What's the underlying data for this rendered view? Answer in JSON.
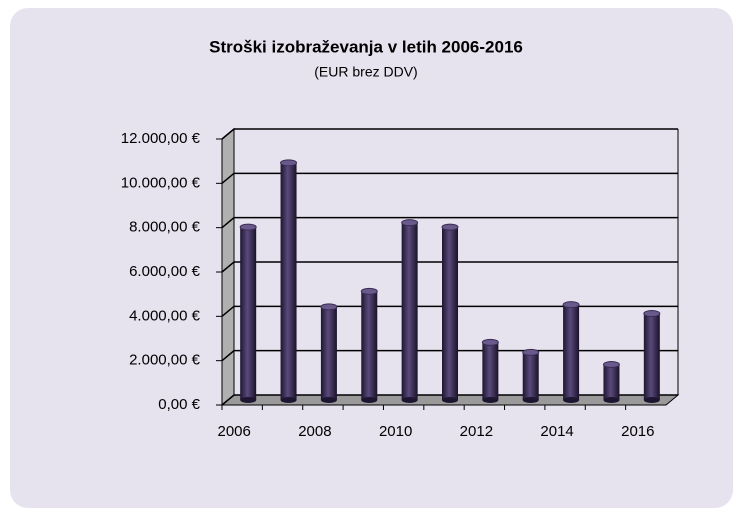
{
  "chart_data": {
    "type": "bar3d",
    "title": "Stroški izobraževanja v letih 2006-2016",
    "subtitle": "(EUR brez DDV)",
    "categories": [
      "2006",
      null,
      "2008",
      null,
      "2010",
      null,
      "2012",
      null,
      "2014",
      null,
      "2016"
    ],
    "values": [
      7800,
      10700,
      4200,
      4900,
      8000,
      7800,
      2600,
      2150,
      4300,
      1600,
      3900
    ],
    "color": "#3a2d55",
    "ylim": [
      0,
      12000
    ],
    "yticks": [
      {
        "value": 0,
        "label": "0,00 €"
      },
      {
        "value": 2000,
        "label": "2.000,00 €"
      },
      {
        "value": 4000,
        "label": "4.000,00 €"
      },
      {
        "value": 6000,
        "label": "6.000,00 €"
      },
      {
        "value": 8000,
        "label": "8.000,00 €"
      },
      {
        "value": 10000,
        "label": "10.000,00 €"
      },
      {
        "value": 12000,
        "label": "12.000,00 €"
      }
    ],
    "grid": true
  }
}
